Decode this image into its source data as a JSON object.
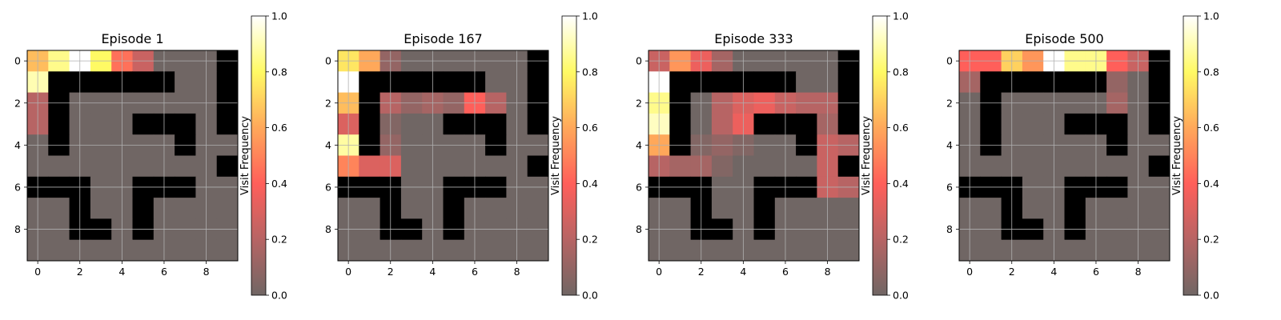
{
  "chart_data": [
    {
      "type": "heatmap",
      "title": "Episode 1",
      "colorbar": {
        "label": "Visit Frequency",
        "range": [
          0.0,
          1.0
        ],
        "ticks": [
          "0.0",
          "0.2",
          "0.4",
          "0.6",
          "0.8",
          "1.0"
        ]
      },
      "xticks": [
        "0",
        "2",
        "4",
        "6",
        "8"
      ],
      "yticks": [
        "0",
        "2",
        "4",
        "6",
        "8"
      ],
      "grid": "-1 = wall (black); values 0-1 = visit frequency",
      "cells": [
        [
          0.65,
          0.85,
          1.0,
          0.8,
          0.45,
          0.25,
          0,
          0,
          0,
          -1
        ],
        [
          0.9,
          -1,
          -1,
          -1,
          -1,
          -1,
          -1,
          0,
          0,
          -1
        ],
        [
          0.2,
          -1,
          0,
          0,
          0,
          0,
          0,
          0,
          0,
          -1
        ],
        [
          0.2,
          -1,
          0,
          0,
          0,
          -1,
          -1,
          -1,
          0,
          -1
        ],
        [
          0,
          -1,
          0,
          0,
          0,
          0,
          0,
          -1,
          0,
          0
        ],
        [
          0,
          0,
          0,
          0,
          0,
          0,
          0,
          0,
          0,
          -1
        ],
        [
          -1,
          -1,
          -1,
          0,
          0,
          -1,
          -1,
          -1,
          0,
          0
        ],
        [
          0,
          0,
          -1,
          0,
          0,
          -1,
          0,
          0,
          0,
          0
        ],
        [
          0,
          0,
          -1,
          -1,
          0,
          -1,
          0,
          0,
          0,
          0
        ],
        [
          0,
          0,
          0,
          0,
          0,
          0,
          0,
          0,
          0,
          0
        ]
      ]
    },
    {
      "type": "heatmap",
      "title": "Episode 167",
      "colorbar": {
        "label": "Visit Frequency",
        "range": [
          0.0,
          1.0
        ],
        "ticks": [
          "0.0",
          "0.2",
          "0.4",
          "0.6",
          "0.8",
          "1.0"
        ]
      },
      "xticks": [
        "0",
        "2",
        "4",
        "6",
        "8"
      ],
      "yticks": [
        "0",
        "2",
        "4",
        "6",
        "8"
      ],
      "cells": [
        [
          0.75,
          0.6,
          0.1,
          0,
          0,
          0,
          0,
          0,
          0,
          -1
        ],
        [
          1.0,
          -1,
          -1,
          -1,
          -1,
          -1,
          -1,
          0,
          0,
          -1
        ],
        [
          0.65,
          -1,
          0.2,
          0.1,
          0.15,
          0.1,
          0.4,
          0.2,
          0,
          -1
        ],
        [
          0.3,
          -1,
          0.05,
          0,
          0,
          -1,
          -1,
          -1,
          0,
          -1
        ],
        [
          0.88,
          -1,
          0.1,
          0,
          0,
          0,
          0,
          -1,
          0,
          0
        ],
        [
          0.5,
          0.3,
          0.3,
          0,
          0,
          0,
          0,
          0,
          0,
          -1
        ],
        [
          -1,
          -1,
          -1,
          0,
          0,
          -1,
          -1,
          -1,
          0,
          0
        ],
        [
          0,
          0,
          -1,
          0,
          0,
          -1,
          0,
          0,
          0,
          0
        ],
        [
          0,
          0,
          -1,
          -1,
          0,
          -1,
          0,
          0,
          0,
          0
        ],
        [
          0,
          0,
          0,
          0,
          0,
          0,
          0,
          0,
          0,
          0
        ]
      ]
    },
    {
      "type": "heatmap",
      "title": "Episode 333",
      "colorbar": {
        "label": "Visit Frequency",
        "range": [
          0.0,
          1.0
        ],
        "ticks": [
          "0.0",
          "0.2",
          "0.4",
          "0.6",
          "0.8",
          "1.0"
        ]
      },
      "xticks": [
        "0",
        "2",
        "4",
        "6",
        "8"
      ],
      "yticks": [
        "0",
        "2",
        "4",
        "6",
        "8"
      ],
      "cells": [
        [
          0.25,
          0.55,
          0.35,
          0.15,
          0,
          0,
          0,
          0,
          0,
          -1
        ],
        [
          1.0,
          -1,
          -1,
          -1,
          -1,
          -1,
          -1,
          0,
          0,
          -1
        ],
        [
          0.85,
          -1,
          0,
          0.2,
          0.3,
          0.35,
          0.25,
          0.2,
          0.2,
          -1
        ],
        [
          0.92,
          -1,
          0,
          0.2,
          0.35,
          -1,
          -1,
          -1,
          0.15,
          -1
        ],
        [
          0.6,
          -1,
          0.05,
          0.1,
          0.05,
          0,
          0,
          -1,
          0.25,
          0.2
        ],
        [
          0.2,
          0.15,
          0.15,
          0.05,
          0,
          0,
          0,
          0,
          0.25,
          -1
        ],
        [
          -1,
          -1,
          -1,
          0,
          0,
          -1,
          -1,
          -1,
          0.25,
          0.2
        ],
        [
          0,
          0,
          -1,
          0,
          0,
          -1,
          0,
          0,
          0,
          0
        ],
        [
          0,
          0,
          -1,
          -1,
          0,
          -1,
          0,
          0,
          0,
          0
        ],
        [
          0,
          0,
          0,
          0,
          0,
          0,
          0,
          0,
          0,
          0
        ]
      ]
    },
    {
      "type": "heatmap",
      "title": "Episode 500",
      "colorbar": {
        "label": "Visit Frequency",
        "range": [
          0.0,
          1.0
        ],
        "ticks": [
          "0.0",
          "0.2",
          "0.4",
          "0.6",
          "0.8",
          "1.0"
        ]
      },
      "xticks": [
        "0",
        "2",
        "4",
        "6",
        "8"
      ],
      "yticks": [
        "0",
        "2",
        "4",
        "6",
        "8"
      ],
      "cells": [
        [
          0.4,
          0.4,
          0.7,
          0.55,
          1.0,
          0.85,
          0.85,
          0.4,
          0.25,
          -1
        ],
        [
          0.15,
          -1,
          -1,
          -1,
          -1,
          -1,
          -1,
          0.1,
          0,
          -1
        ],
        [
          0,
          -1,
          0,
          0,
          0,
          0,
          0,
          0.15,
          0,
          -1
        ],
        [
          0,
          -1,
          0,
          0,
          0,
          -1,
          -1,
          -1,
          0,
          -1
        ],
        [
          0,
          -1,
          0,
          0,
          0,
          0,
          0,
          -1,
          0,
          0
        ],
        [
          0,
          0,
          0,
          0,
          0,
          0,
          0,
          0,
          0,
          -1
        ],
        [
          -1,
          -1,
          -1,
          0,
          0,
          -1,
          -1,
          -1,
          0,
          0
        ],
        [
          0,
          0,
          -1,
          0,
          0,
          -1,
          0,
          0,
          0,
          0
        ],
        [
          0,
          0,
          -1,
          -1,
          0,
          -1,
          0,
          0,
          0,
          0
        ],
        [
          0,
          0,
          0,
          0,
          0,
          0,
          0,
          0,
          0,
          0
        ]
      ]
    }
  ]
}
